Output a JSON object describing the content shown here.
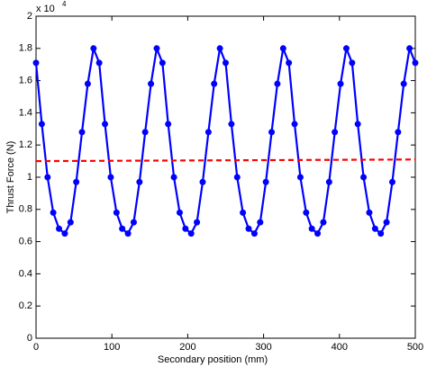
{
  "chart_data": {
    "type": "line",
    "xlabel": "Secondary position (mm)",
    "ylabel": "Thrust Force (N)",
    "axis_multiplier": {
      "base": "x 10",
      "exponent": "4"
    },
    "xlim": [
      0,
      500
    ],
    "xticks": [
      0,
      100,
      200,
      300,
      400,
      500
    ],
    "ylim": [
      0,
      2
    ],
    "yticks": [
      0,
      0.2,
      0.4,
      0.6,
      0.8,
      1,
      1.2,
      1.4,
      1.6,
      1.8,
      2
    ],
    "box": true,
    "series": [
      {
        "color": "#0000ff",
        "dash": false,
        "markers": true,
        "x": [
          0,
          7.6,
          15.2,
          22.7,
          30.3,
          37.9,
          45.5,
          53,
          60.6,
          68.2,
          75.8,
          83.3,
          90.9,
          98.5,
          106.1,
          113.6,
          121.2,
          128.8,
          136.4,
          143.9,
          151.5,
          159.1,
          166.7,
          174.2,
          181.8,
          189.4,
          197,
          204.5,
          212.1,
          219.7,
          227.3,
          234.8,
          242.4,
          250,
          257.6,
          265.2,
          272.7,
          280.3,
          287.9,
          295.5,
          303,
          310.6,
          318.2,
          325.8,
          333.3,
          340.9,
          348.5,
          356.1,
          363.6,
          371.2,
          378.8,
          386.4,
          393.9,
          401.5,
          409.1,
          416.7,
          424.2,
          431.8,
          439.4,
          447,
          454.5,
          462.1,
          469.7,
          477.3,
          484.8,
          492.4,
          500
        ],
        "values": [
          1.71,
          1.33,
          1.0,
          0.78,
          0.68,
          0.65,
          0.72,
          0.97,
          1.28,
          1.58,
          1.8,
          1.71,
          1.33,
          1.0,
          0.78,
          0.68,
          0.65,
          0.72,
          0.97,
          1.28,
          1.58,
          1.8,
          1.71,
          1.33,
          1.0,
          0.78,
          0.68,
          0.65,
          0.72,
          0.97,
          1.28,
          1.58,
          1.8,
          1.71,
          1.33,
          1.0,
          0.78,
          0.68,
          0.65,
          0.72,
          0.97,
          1.28,
          1.58,
          1.8,
          1.71,
          1.33,
          1.0,
          0.78,
          0.68,
          0.65,
          0.72,
          0.97,
          1.28,
          1.58,
          1.8,
          1.71,
          1.33,
          1.0,
          0.78,
          0.68,
          0.65,
          0.72,
          0.97,
          1.28,
          1.58,
          1.8,
          1.71
        ]
      },
      {
        "color": "#ff0000",
        "dash": true,
        "markers": false,
        "x": [
          0,
          500
        ],
        "values": [
          1.1,
          1.11
        ]
      }
    ]
  }
}
